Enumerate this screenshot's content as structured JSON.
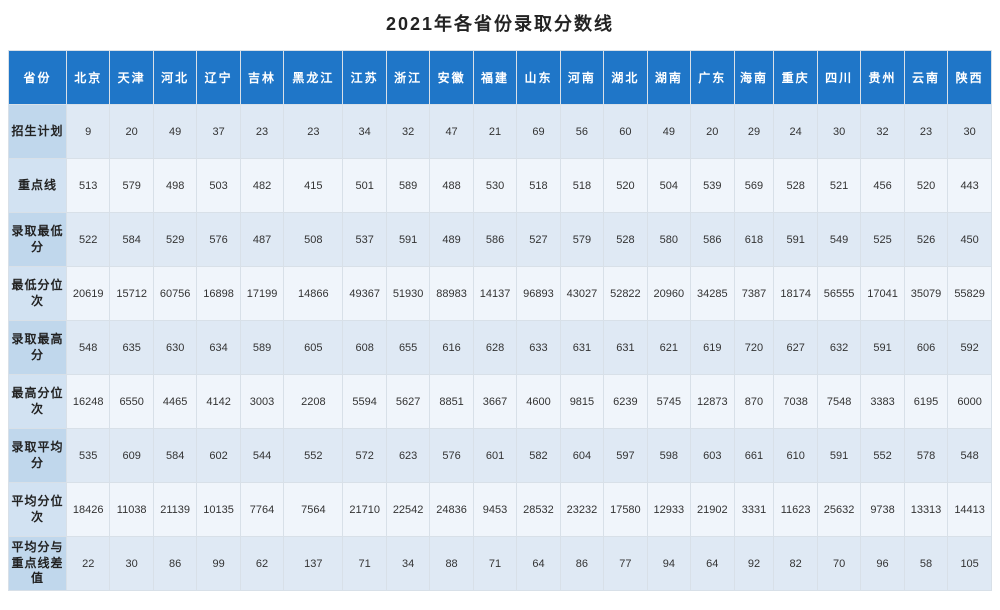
{
  "title": "2021年各省份录取分数线",
  "header_label": "省份",
  "provinces": [
    "北京",
    "天津",
    "河北",
    "辽宁",
    "吉林",
    "黑龙江",
    "江苏",
    "浙江",
    "安徽",
    "福建",
    "山东",
    "河南",
    "湖北",
    "湖南",
    "广东",
    "海南",
    "重庆",
    "四川",
    "贵州",
    "云南",
    "陕西"
  ],
  "rows": [
    {
      "label": "招生计划",
      "values": [
        "9",
        "20",
        "49",
        "37",
        "23",
        "23",
        "34",
        "32",
        "47",
        "21",
        "69",
        "56",
        "60",
        "49",
        "20",
        "29",
        "24",
        "30",
        "32",
        "23",
        "30"
      ]
    },
    {
      "label": "重点线",
      "values": [
        "513",
        "579",
        "498",
        "503",
        "482",
        "415",
        "501",
        "589",
        "488",
        "530",
        "518",
        "518",
        "520",
        "504",
        "539",
        "569",
        "528",
        "521",
        "456",
        "520",
        "443"
      ]
    },
    {
      "label": "录取最低分",
      "values": [
        "522",
        "584",
        "529",
        "576",
        "487",
        "508",
        "537",
        "591",
        "489",
        "586",
        "527",
        "579",
        "528",
        "580",
        "586",
        "618",
        "591",
        "549",
        "525",
        "526",
        "450"
      ]
    },
    {
      "label": "最低分位次",
      "values": [
        "20619",
        "15712",
        "60756",
        "16898",
        "17199",
        "14866",
        "49367",
        "51930",
        "88983",
        "14137",
        "96893",
        "43027",
        "52822",
        "20960",
        "34285",
        "7387",
        "18174",
        "56555",
        "17041",
        "35079",
        "55829"
      ]
    },
    {
      "label": "录取最高分",
      "values": [
        "548",
        "635",
        "630",
        "634",
        "589",
        "605",
        "608",
        "655",
        "616",
        "628",
        "633",
        "631",
        "631",
        "621",
        "619",
        "720",
        "627",
        "632",
        "591",
        "606",
        "592"
      ]
    },
    {
      "label": "最高分位次",
      "values": [
        "16248",
        "6550",
        "4465",
        "4142",
        "3003",
        "2208",
        "5594",
        "5627",
        "8851",
        "3667",
        "4600",
        "9815",
        "6239",
        "5745",
        "12873",
        "870",
        "7038",
        "7548",
        "3383",
        "6195",
        "6000"
      ]
    },
    {
      "label": "录取平均分",
      "values": [
        "535",
        "609",
        "584",
        "602",
        "544",
        "552",
        "572",
        "623",
        "576",
        "601",
        "582",
        "604",
        "597",
        "598",
        "603",
        "661",
        "610",
        "591",
        "552",
        "578",
        "548"
      ]
    },
    {
      "label": "平均分位次",
      "values": [
        "18426",
        "11038",
        "21139",
        "10135",
        "7764",
        "7564",
        "21710",
        "22542",
        "24836",
        "9453",
        "28532",
        "23232",
        "17580",
        "12933",
        "21902",
        "3331",
        "11623",
        "25632",
        "9738",
        "13313",
        "14413"
      ]
    },
    {
      "label": "平均分与重点线差值",
      "values": [
        "22",
        "30",
        "86",
        "99",
        "62",
        "137",
        "71",
        "34",
        "88",
        "71",
        "64",
        "86",
        "77",
        "94",
        "64",
        "92",
        "82",
        "70",
        "96",
        "58",
        "105"
      ]
    }
  ],
  "colors": {
    "header_bg": "#1f76c8",
    "header_fg": "#ffffff",
    "row_odd_bg": "#dfe9f4",
    "row_even_bg": "#f0f5fb",
    "rowhdr_odd_bg": "#c0d7ec",
    "rowhdr_even_bg": "#d2e2f2",
    "border": "#d8e0e8",
    "text": "#333333"
  }
}
